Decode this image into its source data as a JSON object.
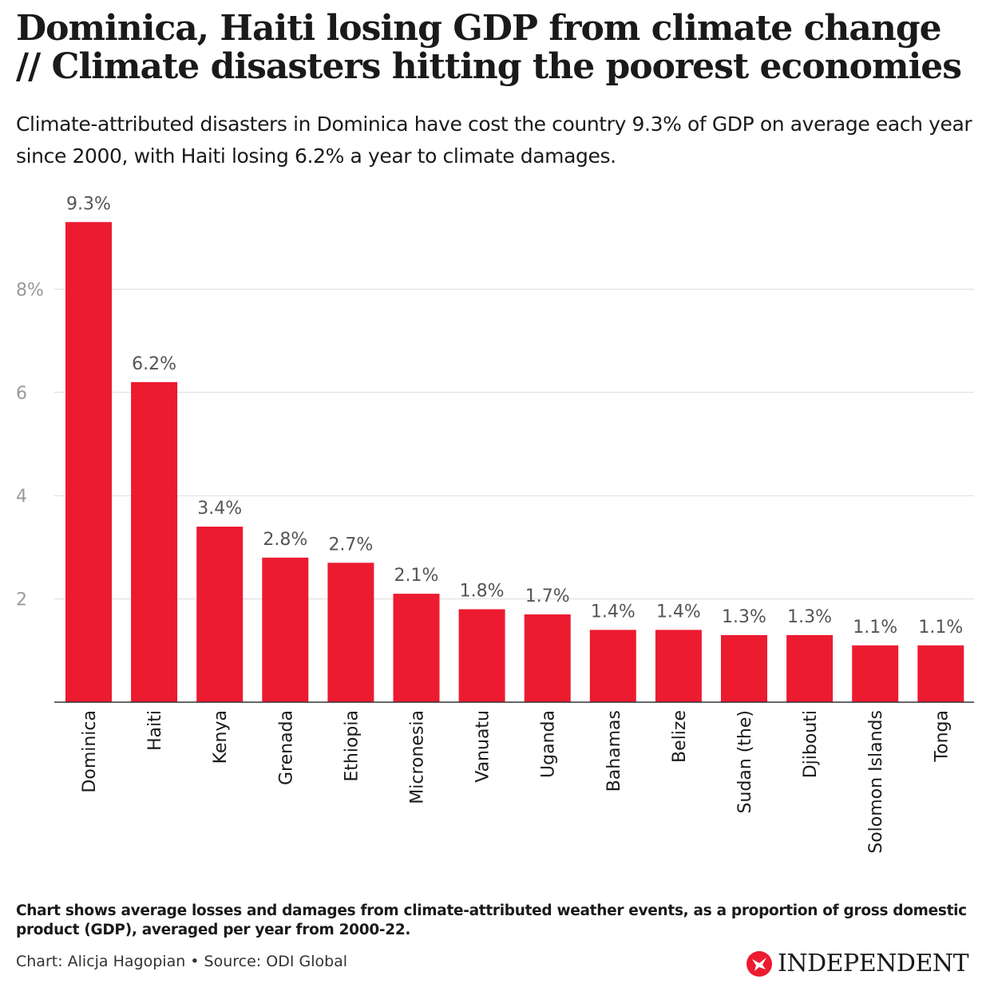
{
  "header": {
    "title": "Dominica, Haiti losing GDP from climate change // Climate disasters hitting the poorest economies",
    "subtitle": "Climate-attributed disasters in Dominica have cost the country 9.3% of GDP on average each year since 2000, with Haiti losing 6.2% a year to climate damages."
  },
  "chart_data": {
    "type": "bar",
    "categories": [
      "Dominica",
      "Haiti",
      "Kenya",
      "Grenada",
      "Ethiopia",
      "Micronesia",
      "Vanuatu",
      "Uganda",
      "Bahamas",
      "Belize",
      "Sudan (the)",
      "Djibouti",
      "Solomon Islands",
      "Tonga"
    ],
    "values": [
      9.3,
      6.2,
      3.4,
      2.8,
      2.7,
      2.1,
      1.8,
      1.7,
      1.4,
      1.4,
      1.3,
      1.3,
      1.1,
      1.1
    ],
    "data_labels": [
      "9.3%",
      "6.2%",
      "3.4%",
      "2.8%",
      "2.7%",
      "2.1%",
      "1.8%",
      "1.7%",
      "1.4%",
      "1.4%",
      "1.3%",
      "1.3%",
      "1.1%",
      "1.1%"
    ],
    "yticks": [
      {
        "value": 2,
        "label": "2"
      },
      {
        "value": 4,
        "label": "4"
      },
      {
        "value": 6,
        "label": "6"
      },
      {
        "value": 8,
        "label": "8%"
      }
    ],
    "ylim": [
      0,
      9.3
    ],
    "grid": true,
    "bar_color": "#ec1b30"
  },
  "footer": {
    "note": "Chart shows average losses and damages from climate-attributed weather events, as a proportion of gross domestic product (GDP), averaged per year from 2000-22.",
    "credit": "Chart: Alicja Hagopian • Source: ODI Global",
    "logo": "INDEPENDENT"
  }
}
